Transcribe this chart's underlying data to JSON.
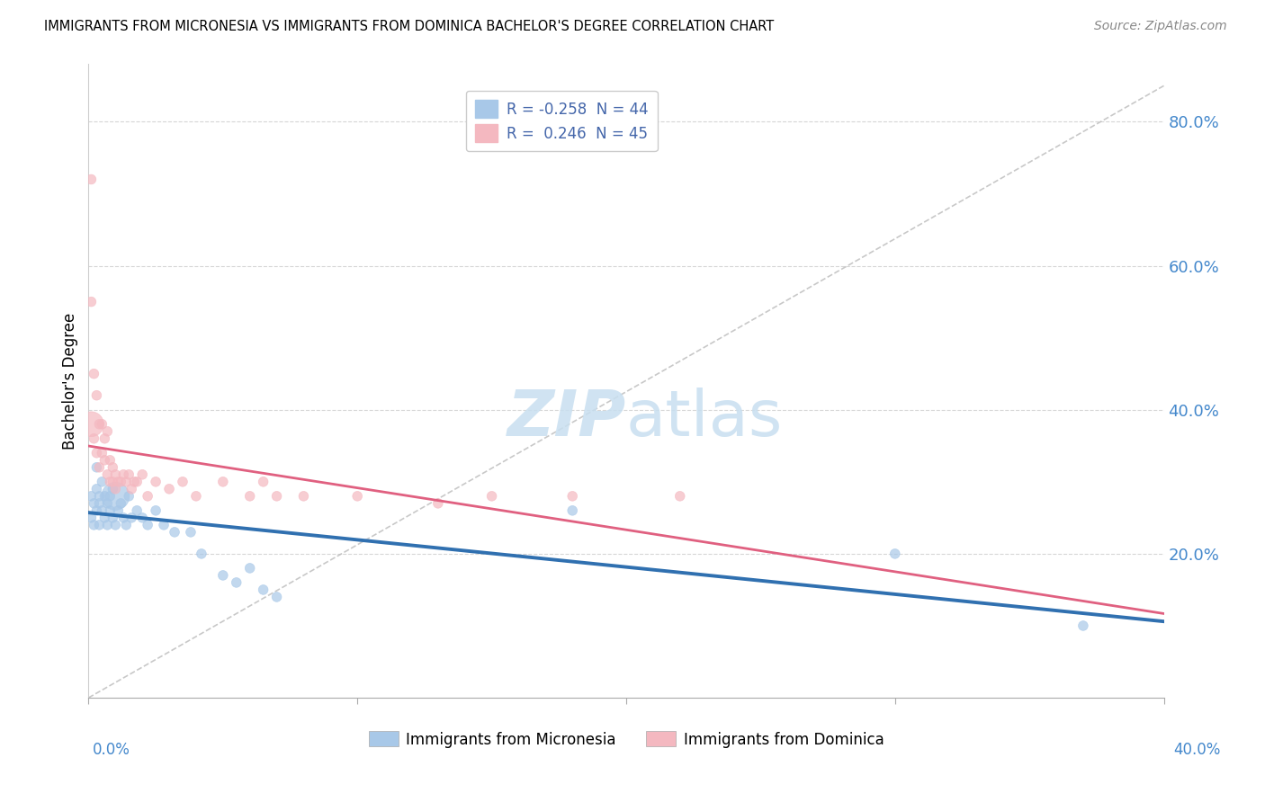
{
  "title": "IMMIGRANTS FROM MICRONESIA VS IMMIGRANTS FROM DOMINICA BACHELOR'S DEGREE CORRELATION CHART",
  "source": "Source: ZipAtlas.com",
  "ylabel": "Bachelor's Degree",
  "xlim": [
    0.0,
    0.4
  ],
  "ylim": [
    0.0,
    0.88
  ],
  "ytick_vals": [
    0.2,
    0.4,
    0.6,
    0.8
  ],
  "ytick_labels": [
    "20.0%",
    "40.0%",
    "60.0%",
    "80.0%"
  ],
  "legend_text1": "R = -0.258  N = 44",
  "legend_text2": "R =  0.246  N = 45",
  "series1_label": "Immigrants from Micronesia",
  "series2_label": "Immigrants from Dominica",
  "color1": "#a8c8e8",
  "color2": "#f4b8c0",
  "trend1_color": "#3070b0",
  "trend2_color": "#e06080",
  "diagonal_color": "#bbbbbb",
  "watermark_color": "#c8dff0",
  "background_color": "#ffffff",
  "grid_color": "#cccccc",
  "micronesia_x": [
    0.001,
    0.001,
    0.002,
    0.002,
    0.003,
    0.003,
    0.004,
    0.004,
    0.005,
    0.005,
    0.006,
    0.006,
    0.007,
    0.007,
    0.008,
    0.008,
    0.009,
    0.009,
    0.01,
    0.01,
    0.011,
    0.012,
    0.013,
    0.014,
    0.015,
    0.016,
    0.018,
    0.02,
    0.022,
    0.025,
    0.028,
    0.032,
    0.038,
    0.042,
    0.05,
    0.055,
    0.06,
    0.065,
    0.07,
    0.18,
    0.3,
    0.37,
    0.003,
    0.004
  ],
  "micronesia_y": [
    0.28,
    0.25,
    0.27,
    0.24,
    0.29,
    0.26,
    0.27,
    0.24,
    0.3,
    0.26,
    0.28,
    0.25,
    0.27,
    0.24,
    0.28,
    0.26,
    0.29,
    0.25,
    0.28,
    0.24,
    0.26,
    0.27,
    0.25,
    0.24,
    0.28,
    0.25,
    0.26,
    0.25,
    0.24,
    0.26,
    0.24,
    0.23,
    0.23,
    0.2,
    0.17,
    0.16,
    0.18,
    0.15,
    0.14,
    0.26,
    0.2,
    0.1,
    0.32,
    0.28
  ],
  "micronesia_size": [
    60,
    60,
    60,
    60,
    60,
    60,
    60,
    60,
    60,
    60,
    60,
    60,
    60,
    60,
    60,
    60,
    60,
    60,
    500,
    60,
    60,
    60,
    60,
    60,
    60,
    60,
    60,
    60,
    60,
    60,
    60,
    60,
    60,
    60,
    60,
    60,
    60,
    60,
    60,
    60,
    60,
    60,
    60,
    60
  ],
  "dominica_x": [
    0.001,
    0.001,
    0.002,
    0.002,
    0.003,
    0.003,
    0.004,
    0.004,
    0.005,
    0.005,
    0.006,
    0.006,
    0.007,
    0.007,
    0.008,
    0.008,
    0.009,
    0.009,
    0.01,
    0.01,
    0.011,
    0.012,
    0.013,
    0.014,
    0.015,
    0.016,
    0.017,
    0.018,
    0.02,
    0.022,
    0.025,
    0.03,
    0.035,
    0.04,
    0.05,
    0.06,
    0.065,
    0.07,
    0.08,
    0.1,
    0.13,
    0.15,
    0.18,
    0.22,
    0.001
  ],
  "dominica_y": [
    0.72,
    0.55,
    0.45,
    0.36,
    0.42,
    0.34,
    0.38,
    0.32,
    0.38,
    0.34,
    0.36,
    0.33,
    0.37,
    0.31,
    0.33,
    0.3,
    0.32,
    0.3,
    0.31,
    0.29,
    0.3,
    0.3,
    0.31,
    0.3,
    0.31,
    0.29,
    0.3,
    0.3,
    0.31,
    0.28,
    0.3,
    0.29,
    0.3,
    0.28,
    0.3,
    0.28,
    0.3,
    0.28,
    0.28,
    0.28,
    0.27,
    0.28,
    0.28,
    0.28,
    0.38
  ],
  "dominica_size": [
    60,
    60,
    60,
    60,
    60,
    60,
    60,
    60,
    60,
    60,
    60,
    60,
    60,
    60,
    60,
    60,
    60,
    60,
    60,
    60,
    60,
    60,
    60,
    60,
    60,
    60,
    60,
    60,
    60,
    60,
    60,
    60,
    60,
    60,
    60,
    60,
    60,
    60,
    60,
    60,
    60,
    60,
    60,
    60,
    400
  ]
}
